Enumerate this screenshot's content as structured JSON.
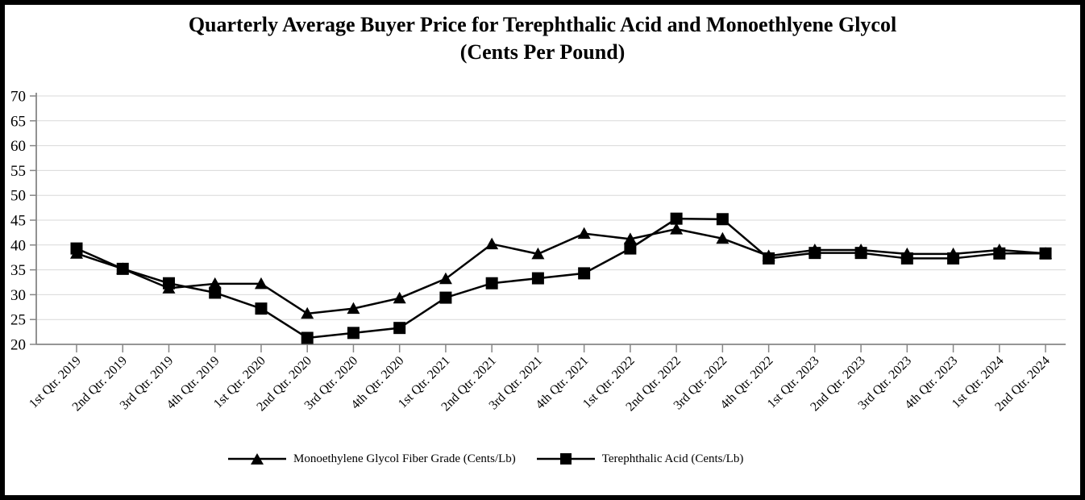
{
  "title": {
    "line1": "Quarterly Average Buyer Price for Terephthalic Acid and Monoethlyene Glycol",
    "line2": "(Cents Per Pound)"
  },
  "chart_data": {
    "type": "line",
    "title": "Quarterly Average Buyer Price for Terephthalic Acid and Monoethlyene Glycol (Cents Per Pound)",
    "categories": [
      "1st Qtr. 2019",
      "2nd Qtr. 2019",
      "3rd Qtr. 2019",
      "4th Qtr. 2019",
      "1st Qtr. 2020",
      "2nd Qtr. 2020",
      "3rd Qtr. 2020",
      "4th Qtr. 2020",
      "1st Qtr. 2021",
      "2nd Qtr. 2021",
      "3rd Qtr. 2021",
      "4th Qtr. 2021",
      "1st Qtr. 2022",
      "2nd Qtr. 2022",
      "3rd Qtr. 2022",
      "4th Qtr. 2022",
      "1st Qtr. 2023",
      "2nd Qtr. 2023",
      "3rd Qtr. 2023",
      "4th Qtr. 2023",
      "1st Qtr. 2024",
      "2nd Qtr. 2024"
    ],
    "series": [
      {
        "name": "Monoethylene Glycol Fiber Grade (Cents/Lb)",
        "marker": "triangle",
        "color": "#000000",
        "values": [
          38.3,
          35.2,
          31.3,
          32.2,
          32.2,
          26.2,
          27.2,
          29.3,
          33.2,
          40.2,
          38.2,
          42.3,
          41.2,
          43.2,
          41.3,
          37.8,
          39.0,
          39.0,
          38.2,
          38.2,
          39.0,
          38.3
        ]
      },
      {
        "name": "Terephthalic Acid (Cents/Lb)",
        "marker": "square",
        "color": "#000000",
        "values": [
          39.3,
          35.2,
          32.3,
          30.4,
          27.2,
          21.3,
          22.3,
          23.3,
          29.4,
          32.3,
          33.3,
          34.3,
          39.3,
          45.3,
          45.2,
          37.3,
          38.4,
          38.4,
          37.3,
          37.3,
          38.3,
          38.3
        ]
      }
    ],
    "ylim": [
      20,
      70
    ],
    "ytick_step": 5,
    "xlabel": "",
    "ylabel": "",
    "grid": "horizontal",
    "legend_position": "bottom",
    "gridline_color": "#d9d9d9",
    "axis_color": "#868686",
    "label_rotation_deg": -45
  }
}
